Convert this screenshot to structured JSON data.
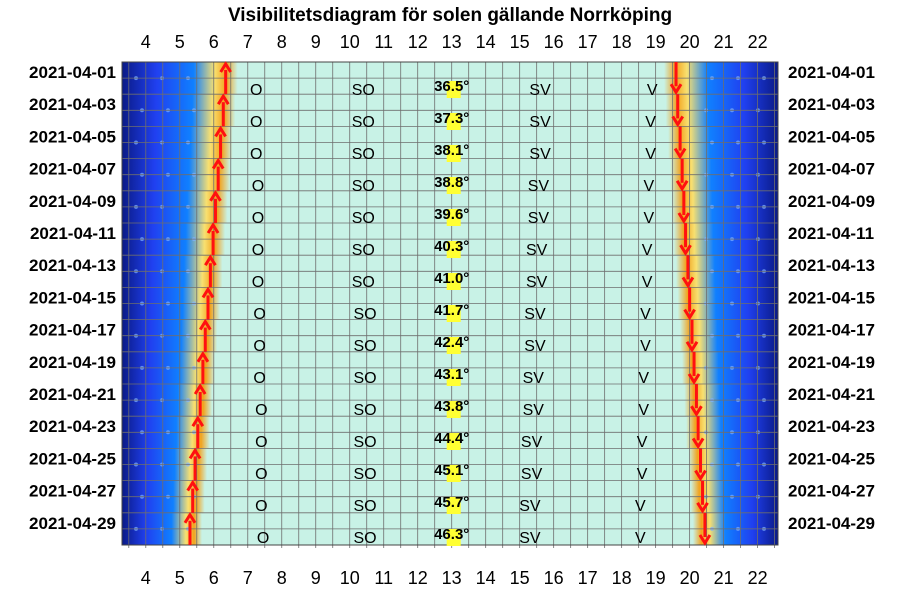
{
  "chart_data": {
    "type": "heatmap",
    "title": "Visibilitetsdiagram för solen gällande Norrköping",
    "x_ticks": [
      4,
      5,
      6,
      7,
      8,
      9,
      10,
      11,
      12,
      13,
      14,
      15,
      16,
      17,
      18,
      19,
      20,
      21,
      22
    ],
    "xlim": [
      3.3,
      22.6
    ],
    "row_labels": [
      "2021-04-01",
      "2021-04-03",
      "2021-04-05",
      "2021-04-07",
      "2021-04-09",
      "2021-04-11",
      "2021-04-13",
      "2021-04-15",
      "2021-04-17",
      "2021-04-19",
      "2021-04-21",
      "2021-04-23",
      "2021-04-25",
      "2021-04-27",
      "2021-04-29"
    ],
    "rows": [
      {
        "date": "2021-04-01",
        "sunrise": 6.35,
        "sunset": 19.6,
        "o": 7.25,
        "so": 10.4,
        "alt": "36.5°",
        "alt_x": 13.0,
        "sv": 15.6,
        "v": 18.9
      },
      {
        "date": "2021-04-03",
        "sunrise": 6.28,
        "sunset": 19.65,
        "o": 7.25,
        "so": 10.4,
        "alt": "37.3°",
        "alt_x": 13.0,
        "sv": 15.6,
        "v": 18.85
      },
      {
        "date": "2021-04-05",
        "sunrise": 6.2,
        "sunset": 19.72,
        "o": 7.25,
        "so": 10.4,
        "alt": "38.1°",
        "alt_x": 13.0,
        "sv": 15.6,
        "v": 18.85
      },
      {
        "date": "2021-04-07",
        "sunrise": 6.13,
        "sunset": 19.78,
        "o": 7.3,
        "so": 10.4,
        "alt": "38.8°",
        "alt_x": 13.0,
        "sv": 15.55,
        "v": 18.8
      },
      {
        "date": "2021-04-09",
        "sunrise": 6.05,
        "sunset": 19.83,
        "o": 7.3,
        "so": 10.4,
        "alt": "39.6°",
        "alt_x": 13.0,
        "sv": 15.55,
        "v": 18.8
      },
      {
        "date": "2021-04-11",
        "sunrise": 5.98,
        "sunset": 19.88,
        "o": 7.3,
        "so": 10.4,
        "alt": "40.3°",
        "alt_x": 13.0,
        "sv": 15.5,
        "v": 18.75
      },
      {
        "date": "2021-04-13",
        "sunrise": 5.9,
        "sunset": 19.95,
        "o": 7.3,
        "so": 10.4,
        "alt": "41.0°",
        "alt_x": 13.0,
        "sv": 15.5,
        "v": 18.75
      },
      {
        "date": "2021-04-15",
        "sunrise": 5.83,
        "sunset": 20.0,
        "o": 7.35,
        "so": 10.45,
        "alt": "41.7°",
        "alt_x": 13.0,
        "sv": 15.45,
        "v": 18.7
      },
      {
        "date": "2021-04-17",
        "sunrise": 5.75,
        "sunset": 20.07,
        "o": 7.35,
        "so": 10.45,
        "alt": "42.4°",
        "alt_x": 13.0,
        "sv": 15.45,
        "v": 18.7
      },
      {
        "date": "2021-04-19",
        "sunrise": 5.68,
        "sunset": 20.13,
        "o": 7.35,
        "so": 10.45,
        "alt": "43.1°",
        "alt_x": 13.0,
        "sv": 15.4,
        "v": 18.65
      },
      {
        "date": "2021-04-21",
        "sunrise": 5.6,
        "sunset": 20.2,
        "o": 7.4,
        "so": 10.45,
        "alt": "43.8°",
        "alt_x": 13.0,
        "sv": 15.4,
        "v": 18.65
      },
      {
        "date": "2021-04-23",
        "sunrise": 5.53,
        "sunset": 20.25,
        "o": 7.4,
        "so": 10.45,
        "alt": "44.4°",
        "alt_x": 13.0,
        "sv": 15.35,
        "v": 18.6
      },
      {
        "date": "2021-04-25",
        "sunrise": 5.45,
        "sunset": 20.32,
        "o": 7.4,
        "so": 10.45,
        "alt": "45.1°",
        "alt_x": 13.0,
        "sv": 15.35,
        "v": 18.6
      },
      {
        "date": "2021-04-27",
        "sunrise": 5.38,
        "sunset": 20.38,
        "o": 7.4,
        "so": 10.45,
        "alt": "45.7°",
        "alt_x": 13.0,
        "sv": 15.3,
        "v": 18.55
      },
      {
        "date": "2021-04-29",
        "sunrise": 5.3,
        "sunset": 20.45,
        "o": 7.45,
        "so": 10.45,
        "alt": "46.3°",
        "alt_x": 13.0,
        "sv": 15.3,
        "v": 18.55
      }
    ],
    "direction_labels": {
      "o": "O",
      "so": "SO",
      "sv": "SV",
      "v": "V"
    },
    "colors": {
      "day": "#c8f2e6",
      "grid": "#6e6e6e",
      "night_dark": "#0a1a86",
      "night_blue": "#2040f0",
      "twilight_mid": "#1080ff",
      "twilight_orange": "#f2a21c",
      "twilight_yellow": "#f8e070",
      "arrow": "#ff1010",
      "alt_highlight": "#ffff33"
    },
    "grid": true
  }
}
